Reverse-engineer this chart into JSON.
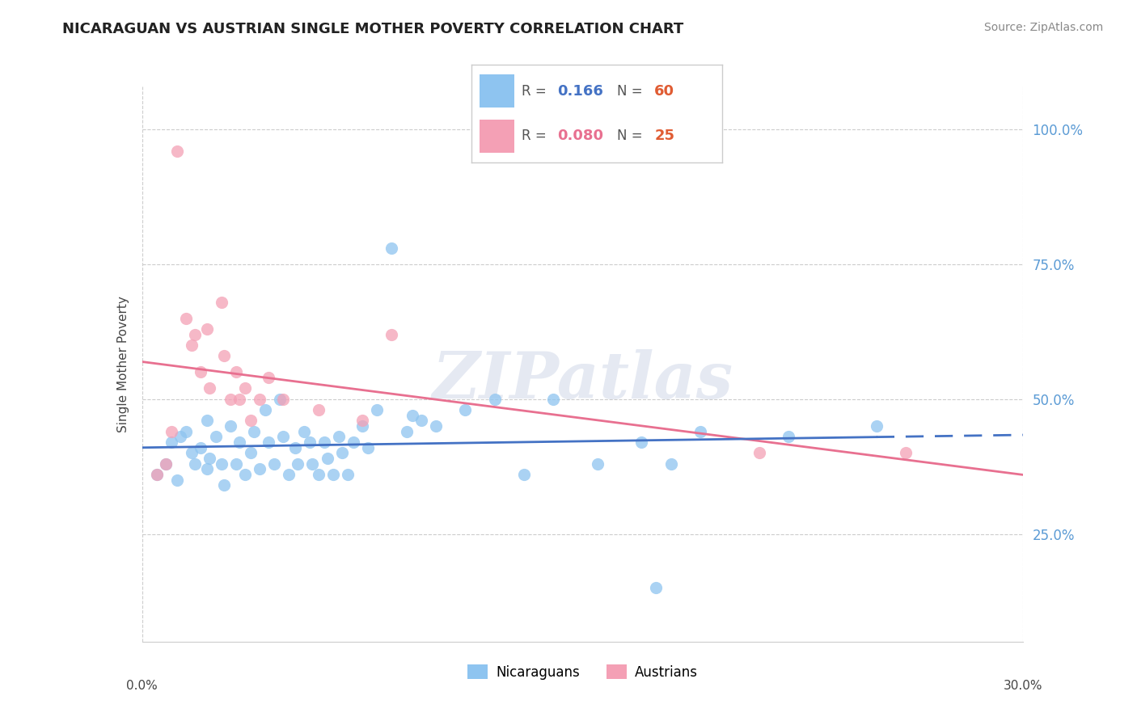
{
  "title": "NICARAGUAN VS AUSTRIAN SINGLE MOTHER POVERTY CORRELATION CHART",
  "source": "Source: ZipAtlas.com",
  "ylabel": "Single Mother Poverty",
  "yticks": [
    0.25,
    0.5,
    0.75,
    1.0
  ],
  "ytick_labels": [
    "25.0%",
    "50.0%",
    "75.0%",
    "100.0%"
  ],
  "xmin": 0.0,
  "xmax": 0.3,
  "ymin": 0.05,
  "ymax": 1.08,
  "nicaraguan_color": "#8EC4F0",
  "austrian_color": "#F4A0B5",
  "nic_line_color": "#4472C4",
  "aut_line_color": "#E87090",
  "ytick_color": "#5B9BD5",
  "watermark_text": "ZIPatlas",
  "nicaraguan_points": [
    [
      0.005,
      0.36
    ],
    [
      0.008,
      0.38
    ],
    [
      0.01,
      0.42
    ],
    [
      0.012,
      0.35
    ],
    [
      0.013,
      0.43
    ],
    [
      0.015,
      0.44
    ],
    [
      0.017,
      0.4
    ],
    [
      0.018,
      0.38
    ],
    [
      0.02,
      0.41
    ],
    [
      0.022,
      0.46
    ],
    [
      0.022,
      0.37
    ],
    [
      0.023,
      0.39
    ],
    [
      0.025,
      0.43
    ],
    [
      0.027,
      0.38
    ],
    [
      0.028,
      0.34
    ],
    [
      0.03,
      0.45
    ],
    [
      0.032,
      0.38
    ],
    [
      0.033,
      0.42
    ],
    [
      0.035,
      0.36
    ],
    [
      0.037,
      0.4
    ],
    [
      0.038,
      0.44
    ],
    [
      0.04,
      0.37
    ],
    [
      0.042,
      0.48
    ],
    [
      0.043,
      0.42
    ],
    [
      0.045,
      0.38
    ],
    [
      0.047,
      0.5
    ],
    [
      0.048,
      0.43
    ],
    [
      0.05,
      0.36
    ],
    [
      0.052,
      0.41
    ],
    [
      0.053,
      0.38
    ],
    [
      0.055,
      0.44
    ],
    [
      0.057,
      0.42
    ],
    [
      0.058,
      0.38
    ],
    [
      0.06,
      0.36
    ],
    [
      0.062,
      0.42
    ],
    [
      0.063,
      0.39
    ],
    [
      0.065,
      0.36
    ],
    [
      0.067,
      0.43
    ],
    [
      0.068,
      0.4
    ],
    [
      0.07,
      0.36
    ],
    [
      0.072,
      0.42
    ],
    [
      0.075,
      0.45
    ],
    [
      0.077,
      0.41
    ],
    [
      0.08,
      0.48
    ],
    [
      0.085,
      0.78
    ],
    [
      0.09,
      0.44
    ],
    [
      0.092,
      0.47
    ],
    [
      0.095,
      0.46
    ],
    [
      0.1,
      0.45
    ],
    [
      0.11,
      0.48
    ],
    [
      0.12,
      0.5
    ],
    [
      0.13,
      0.36
    ],
    [
      0.14,
      0.5
    ],
    [
      0.155,
      0.38
    ],
    [
      0.17,
      0.42
    ],
    [
      0.175,
      0.15
    ],
    [
      0.18,
      0.38
    ],
    [
      0.19,
      0.44
    ],
    [
      0.22,
      0.43
    ],
    [
      0.25,
      0.45
    ]
  ],
  "austrian_points": [
    [
      0.005,
      0.36
    ],
    [
      0.008,
      0.38
    ],
    [
      0.01,
      0.44
    ],
    [
      0.012,
      0.96
    ],
    [
      0.015,
      0.65
    ],
    [
      0.017,
      0.6
    ],
    [
      0.018,
      0.62
    ],
    [
      0.02,
      0.55
    ],
    [
      0.022,
      0.63
    ],
    [
      0.023,
      0.52
    ],
    [
      0.027,
      0.68
    ],
    [
      0.028,
      0.58
    ],
    [
      0.03,
      0.5
    ],
    [
      0.032,
      0.55
    ],
    [
      0.033,
      0.5
    ],
    [
      0.035,
      0.52
    ],
    [
      0.037,
      0.46
    ],
    [
      0.04,
      0.5
    ],
    [
      0.043,
      0.54
    ],
    [
      0.048,
      0.5
    ],
    [
      0.06,
      0.48
    ],
    [
      0.075,
      0.46
    ],
    [
      0.085,
      0.62
    ],
    [
      0.21,
      0.4
    ],
    [
      0.26,
      0.4
    ]
  ]
}
